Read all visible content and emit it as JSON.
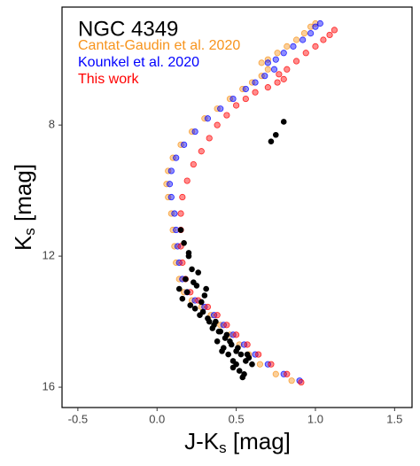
{
  "chart_data": {
    "type": "scatter",
    "title": "NGC 4349",
    "x_label": [
      "J-K",
      "s",
      " [mag]"
    ],
    "y_label": [
      "K",
      "s",
      " [mag]"
    ],
    "xlim": [
      -0.6,
      1.61
    ],
    "ylim": [
      16.62,
      4.4
    ],
    "xticks": [
      -0.5,
      {
        "value": 0,
        "label": "0.0"
      },
      0.5,
      {
        "value": 1,
        "label": "1.0"
      },
      1.5
    ],
    "yticks": [
      8,
      12,
      16
    ],
    "series": [
      {
        "name": "Cantat-Gaudin et al. 2020",
        "color": "#f7941d",
        "x": [
          0.85,
          0.75,
          0.65,
          0.58,
          0.52,
          0.46,
          0.4,
          0.34,
          0.28,
          0.22,
          0.17,
          0.14,
          0.12,
          0.11,
          0.1,
          0.09,
          0.07,
          0.06,
          0.07,
          0.1,
          0.15,
          0.22,
          0.3,
          0.38,
          0.46,
          0.54,
          0.6,
          0.66,
          0.7,
          0.66,
          0.7,
          0.76,
          0.82,
          0.88,
          0.93,
          0.97,
          1.0
        ],
        "values": [
          15.8,
          15.6,
          15.3,
          15.0,
          14.7,
          14.4,
          14.1,
          13.8,
          13.55,
          13.35,
          13.1,
          12.7,
          12.2,
          11.7,
          11.2,
          10.7,
          10.2,
          9.8,
          9.4,
          9.0,
          8.6,
          8.2,
          7.8,
          7.5,
          7.2,
          6.9,
          6.7,
          6.5,
          6.3,
          6.1,
          6.0,
          5.8,
          5.6,
          5.4,
          5.2,
          5.0,
          4.9
        ]
      },
      {
        "name": "Kounkel et al. 2020",
        "color": "#0000ff",
        "x": [
          0.9,
          0.8,
          0.7,
          0.62,
          0.55,
          0.48,
          0.42,
          0.36,
          0.3,
          0.24,
          0.19,
          0.16,
          0.14,
          0.13,
          0.12,
          0.11,
          0.09,
          0.08,
          0.09,
          0.12,
          0.17,
          0.24,
          0.32,
          0.4,
          0.48,
          0.56,
          0.62,
          0.68,
          0.74,
          0.7,
          0.75,
          0.8,
          0.86,
          0.92,
          0.97,
          1.0,
          1.03
        ],
        "values": [
          15.8,
          15.6,
          15.3,
          15.0,
          14.7,
          14.4,
          14.1,
          13.8,
          13.55,
          13.35,
          13.1,
          12.7,
          12.2,
          11.7,
          11.2,
          10.7,
          10.2,
          9.8,
          9.4,
          9.0,
          8.6,
          8.2,
          7.8,
          7.5,
          7.2,
          6.9,
          6.7,
          6.5,
          6.3,
          6.1,
          6.0,
          5.8,
          5.6,
          5.4,
          5.2,
          5.0,
          4.9
        ]
      },
      {
        "name": "This work",
        "color": "#ff0000",
        "x": [
          0.91,
          0.82,
          0.72,
          0.64,
          0.57,
          0.5,
          0.44,
          0.38,
          0.32,
          0.26,
          0.21,
          0.18,
          0.16,
          0.15,
          0.15,
          0.15,
          0.16,
          0.19,
          0.23,
          0.28,
          0.33,
          0.38,
          0.44,
          0.5,
          0.56,
          0.62,
          0.7,
          0.76,
          0.8,
          0.77,
          0.82,
          0.88,
          0.94,
          1.0,
          1.05,
          1.09,
          1.12
        ],
        "values": [
          15.85,
          15.6,
          15.3,
          15.0,
          14.7,
          14.4,
          14.1,
          13.8,
          13.55,
          13.35,
          13.1,
          12.7,
          12.2,
          11.7,
          11.2,
          10.7,
          10.2,
          9.7,
          9.2,
          8.8,
          8.4,
          8.0,
          7.7,
          7.4,
          7.2,
          7.0,
          6.85,
          6.7,
          6.6,
          6.45,
          6.3,
          6.05,
          5.8,
          5.6,
          5.4,
          5.25,
          5.1
        ]
      },
      {
        "color": "#000000",
        "x": [
          0.72,
          0.75,
          0.8,
          0.15,
          0.17,
          0.2,
          0.22,
          0.18,
          0.25,
          0.3,
          0.14,
          0.16,
          0.19,
          0.21,
          0.24,
          0.27,
          0.32,
          0.36,
          0.4,
          0.43,
          0.47,
          0.5,
          0.53,
          0.56,
          0.58,
          0.6,
          0.38,
          0.42,
          0.35,
          0.33,
          0.45,
          0.48,
          0.52,
          0.55,
          0.28,
          0.26,
          0.31,
          0.44,
          0.51,
          0.57,
          0.2,
          0.23,
          0.29,
          0.37,
          0.41,
          0.5,
          0.54,
          0.48,
          0.46,
          0.39
        ],
        "values": [
          8.5,
          8.3,
          7.9,
          11.2,
          11.6,
          12.0,
          12.4,
          12.7,
          12.9,
          13.2,
          13.0,
          13.3,
          13.1,
          13.5,
          13.6,
          13.8,
          13.9,
          14.1,
          14.3,
          14.5,
          14.7,
          14.9,
          15.0,
          15.2,
          15.1,
          15.3,
          14.6,
          14.8,
          14.2,
          14.0,
          15.0,
          15.4,
          15.5,
          15.6,
          13.4,
          12.5,
          13.0,
          14.4,
          14.8,
          15.0,
          11.9,
          12.8,
          13.7,
          14.0,
          14.9,
          15.3,
          15.7,
          15.2,
          14.6,
          14.3
        ]
      }
    ]
  }
}
